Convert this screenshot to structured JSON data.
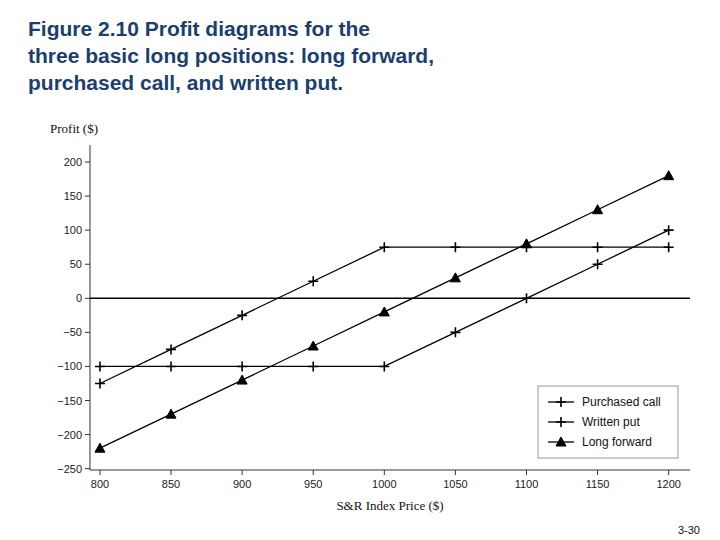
{
  "chart_data": {
    "type": "line",
    "title": [
      "Figure 2.10  Profit diagrams for the",
      "three basic long positions: long forward,",
      "purchased call, and written put."
    ],
    "xlabel": "S&R Index Price ($)",
    "ylabel": "Profit ($)",
    "annotations": [
      "3-30"
    ],
    "x": [
      800,
      850,
      900,
      950,
      1000,
      1050,
      1100,
      1150,
      1200
    ],
    "series": [
      {
        "name": "Purchased call",
        "color": "#000000",
        "marker": "plus",
        "line_style": "solid",
        "values": [
          -100,
          -100,
          -100,
          -100,
          -100,
          -50,
          0,
          50,
          100
        ]
      },
      {
        "name": "Written put",
        "color": "#000000",
        "marker": "plus",
        "line_style": "solid",
        "values": [
          -125,
          -75,
          -25,
          25,
          75,
          75,
          75,
          75,
          75
        ]
      },
      {
        "name": "Long forward",
        "color": "#000000",
        "marker": "triangle",
        "line_style": "solid",
        "values": [
          -220,
          -170,
          -120,
          -70,
          -20,
          30,
          80,
          130,
          180
        ]
      }
    ],
    "xlim": [
      793,
      1215
    ],
    "ylim": [
      -252,
      225
    ],
    "xticks": [
      800,
      850,
      900,
      950,
      1000,
      1050,
      1100,
      1150,
      1200
    ],
    "yticks": [
      {
        "value": -250,
        "label": "−250"
      },
      {
        "value": -200,
        "label": "−200"
      },
      {
        "value": -150,
        "label": "−150"
      },
      {
        "value": -100,
        "label": "−100"
      },
      {
        "value": -50,
        "label": "−50"
      },
      0,
      50,
      100,
      150,
      200
    ],
    "grid": false,
    "legend": "lower right"
  }
}
